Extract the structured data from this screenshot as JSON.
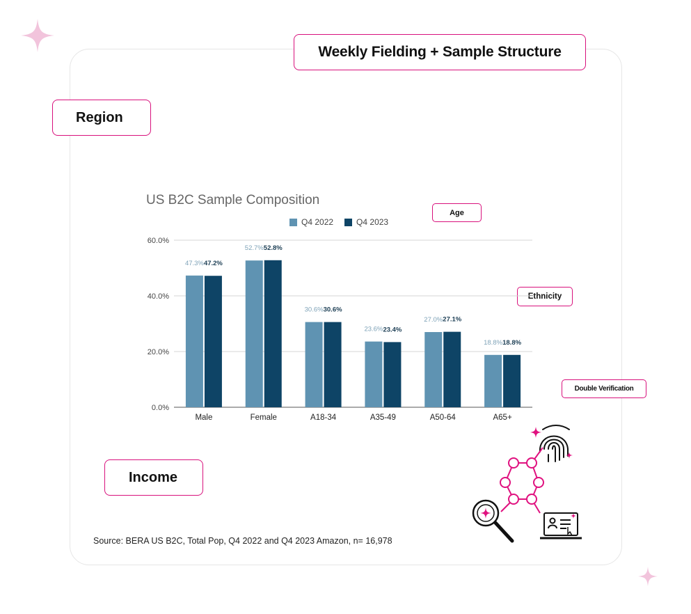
{
  "title": "Weekly Fielding + Sample Structure",
  "tags": {
    "region": "Region",
    "income": "Income",
    "age": "Age",
    "ethnicity": "Ethnicity",
    "double_verification": "Double Verification"
  },
  "source": "Source: BERA US B2C, Total Pop, Q4 2022 and Q4 2023 Amazon, n= 16,978",
  "icons": [
    "sparkle-icon",
    "fingerprint-icon",
    "molecule-network-icon",
    "magnifier-icon",
    "laptop-id-icon"
  ],
  "colors": {
    "accent": "#d8107c",
    "series_2022": "#5f93b2",
    "series_2023": "#0e4466",
    "sparkle": "#f2c4dc"
  },
  "chart_data": {
    "type": "bar",
    "title": "US B2C Sample Composition",
    "categories": [
      "Male",
      "Female",
      "A18-34",
      "A35-49",
      "A50-64",
      "A65+"
    ],
    "series": [
      {
        "name": "Q4 2022",
        "values": [
          47.3,
          52.7,
          30.6,
          23.6,
          27.0,
          18.8
        ],
        "labels": [
          "47.3%",
          "52.7%",
          "30.6%",
          "23.6%",
          "27.0%",
          "18.8%"
        ]
      },
      {
        "name": "Q4 2023",
        "values": [
          47.2,
          52.8,
          30.6,
          23.4,
          27.1,
          18.8
        ],
        "labels": [
          "47.2%",
          "52.8%",
          "30.6%",
          "23.4%",
          "27.1%",
          "18.8%"
        ]
      }
    ],
    "yticks": [
      "0.0%",
      "20.0%",
      "40.0%",
      "60.0%"
    ],
    "ylim": [
      0,
      60
    ],
    "grid": true,
    "legend": "top"
  }
}
